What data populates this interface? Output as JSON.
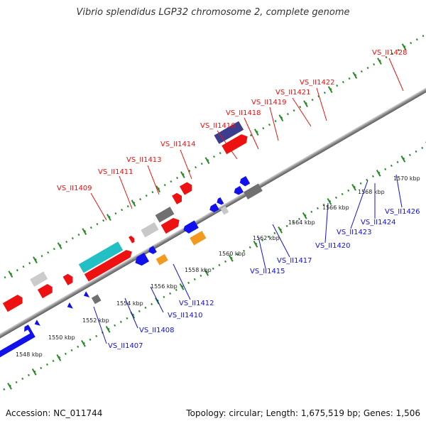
{
  "title": "Vibrio splendidus LGP32 chromosome 2, complete genome",
  "footer": {
    "accession": "Accession: NC_011744",
    "summary": "Topology: circular; Length: 1,675,519 bp; Genes: 1,506"
  },
  "colors": {
    "forward": "#ee1111",
    "reverse": "#1111ee",
    "cyan": "#22bfc4",
    "purple": "#3d3d8f",
    "orange": "#f39a1e",
    "gray": "#b8b8b8",
    "darkgray": "#707070",
    "backbone": "#888888",
    "dots": "#2a8a2a",
    "label_top": "#ee1111",
    "label_bottom": "#1111dd"
  },
  "scale": {
    "unit": "kbp",
    "ticks": [
      "1548 kbp",
      "1550 kbp",
      "1552 kbp",
      "1554 kbp",
      "1556 kbp",
      "1558 kbp",
      "1560 kbp",
      "1562 kbp",
      "1564 kbp",
      "1566 kbp",
      "1568 kbp",
      "1570 kbp"
    ]
  },
  "labels_top": [
    "VS_II1409",
    "VS_II1411",
    "VS_II1413",
    "VS_II1414",
    "VS_II1416",
    "VS_II1418",
    "VS_II1419",
    "VS_II1421",
    "VS_II1422",
    "VS_II1428"
  ],
  "labels_bottom": [
    "VS_II1407",
    "VS_II1408",
    "VS_II1410",
    "VS_II1412",
    "VS_II1415",
    "VS_II1417",
    "VS_II1420",
    "VS_II1423",
    "VS_II1424",
    "VS_II1426"
  ]
}
